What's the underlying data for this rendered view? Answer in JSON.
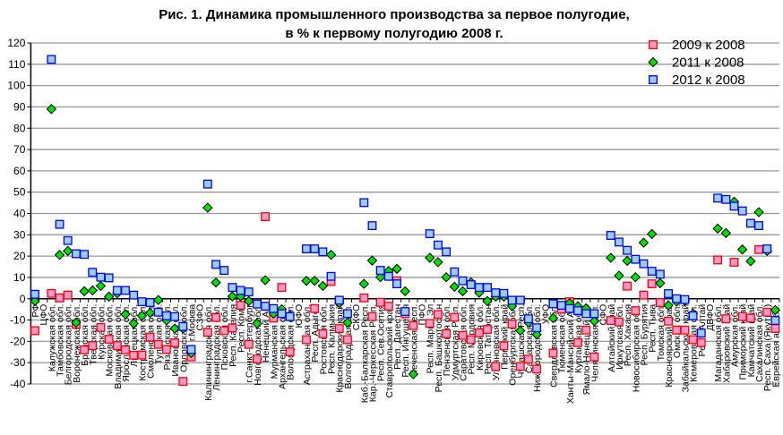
{
  "chart_data": {
    "type": "scatter",
    "title": [
      "Рис. 1. Динамика промышленного производства за первое полугодие,",
      "в % к первому полугодию 2008 г."
    ],
    "xlabel": "",
    "ylabel": "",
    "ylim": [
      -40,
      120
    ],
    "yticks": [
      -40,
      -30,
      -20,
      -10,
      0,
      10,
      20,
      30,
      40,
      50,
      60,
      70,
      80,
      90,
      100,
      110,
      120
    ],
    "grid": true,
    "legend_position": "top-right",
    "categories": [
      "РФ",
      "ЦФО",
      "Калужская обл.",
      "Тамбовская обл.",
      "Белгородская обл.",
      "Воронежская обл.",
      "Брянская обл.",
      "Тверская обл.",
      "Курская обл.",
      "Московская обл.",
      "Владимирская обл.",
      "Ярославская обл.",
      "Липецкая обл.",
      "Костромская обл.",
      "Смоленская обл.",
      "Тульская обл.",
      "Рязанская обл.",
      "Ивановская обл.",
      "Орловская обл.",
      "г.Москва",
      "СЗФО",
      "Калининградская обл.",
      "Ленинградская обл.",
      "Псковская обл.",
      "Респ. Карелия",
      "Респ. Коми",
      "г.Санкт-Петербург",
      "Новгородская обл.",
      "Ненецкий АО",
      "Мурманская обл.",
      "Архангельская обл.",
      "Вологодская обл.",
      "ЮФО",
      "Астраханская обл.",
      "Респ. Адыгея",
      "Ростовская обл.",
      "Респ. Калмыкия",
      "Краснодарский край",
      "Волгоградская обл.",
      "СКФО",
      "Каб.-Балкарская Респ.",
      "Кар.-Черкесская Респ.",
      "Респ. Сев.Осетия",
      "Ставропольский край",
      "Респ. Дагестан",
      "Респ. Ингушетия",
      "Чеченская Респ.",
      "ПФО",
      "Респ. Марий Эл",
      "Респ. Башкортостан",
      "Пензенская обл.",
      "Удмуртская Респ.",
      "Саратовская обл.",
      "Респ. Мордовия",
      "Кировская обл.",
      "Респ. Татарстан",
      "Ульяновская обл.",
      "Пермский край",
      "Оренбургская обл.",
      "Чувашская Респ.",
      "Самарская обл.",
      "Нижегородская обл.",
      "УФО",
      "Свердловская обл.",
      "Тюменская обл.",
      "Ханты-Мансийский АО",
      "Курганская обл.",
      "Ямало-Ненецкий АО",
      "Челябинская обл.",
      "СФО",
      "Алтайский край",
      "Иркутская обл.",
      "Респ. Хакасия",
      "Новосибирская обл.",
      "Респ. Бурятия",
      "Респ. Тыва",
      "Томская обл.",
      "Красноярский край",
      "Омская обл.",
      "Забайкальский край",
      "Кемеровская обл.",
      "Респ. Алтай",
      "ДВФО",
      "Магаданская обл.",
      "Хабаровский край",
      "Амурская обл.",
      "Приморский край",
      "Камчатский край",
      "Сахалинская обл.",
      "Респ. Саха (Якутия)",
      "Еврейская авт.обл."
    ],
    "series": [
      {
        "name": "2009 к 2008",
        "marker": "square",
        "fill": "#ff99cc",
        "stroke": "#ff0000",
        "values": [
          -15,
          null,
          2.5,
          0.4,
          1.7,
          -12,
          -24,
          -22,
          -13.5,
          -19,
          -22,
          -24,
          -26.5,
          -26.4,
          -18,
          -21.4,
          -23.8,
          -20.7,
          -38.8,
          -27.3,
          null,
          -15.8,
          -8.8,
          -15,
          -13.7,
          -3.1,
          -21.4,
          -28.3,
          38.5,
          -9.1,
          5.3,
          -24.9,
          null,
          -19.2,
          -4.6,
          -16.4,
          8.1,
          -14,
          -19.2,
          null,
          0.4,
          -8.4,
          -1.7,
          -3.5,
          8.4,
          -7,
          -12.6,
          null,
          -11.6,
          -7.4,
          -16.4,
          -8.7,
          -17.2,
          -19.2,
          -16,
          -14.4,
          -31.8,
          -22.1,
          -11.9,
          -31.8,
          -28.4,
          -33,
          null,
          -25.5,
          -4.9,
          -1.4,
          -20.6,
          -14.7,
          -27.3,
          null,
          -10.2,
          -10.9,
          5.9,
          -5.6,
          1.7,
          7,
          -1.8,
          -10.5,
          -14.7,
          -14.7,
          -19.2,
          -20.6,
          null,
          18.2,
          -9.4,
          17.1,
          -8.4,
          -9.1,
          23.1,
          -6.3,
          -14
        ]
      },
      {
        "name": "2011 к 2008",
        "marker": "diamond",
        "fill": "#00e000",
        "stroke": "#000000",
        "values": [
          -1.1,
          null,
          89,
          20.6,
          22.4,
          -11.2,
          3.5,
          3.9,
          6,
          1,
          2.5,
          -7.3,
          -11.6,
          -8,
          -6.6,
          -0.6,
          -10.2,
          -14,
          -14,
          -25.5,
          null,
          42.7,
          7.6,
          null,
          1.1,
          1.1,
          -1.1,
          -11.6,
          8.7,
          -7,
          -4.9,
          -7.7,
          null,
          8.4,
          8.4,
          6,
          20.6,
          -2,
          -11.2,
          null,
          7,
          17.9,
          10.1,
          13,
          14,
          3.5,
          -35.4,
          null,
          19.2,
          17.2,
          10.1,
          5.6,
          3.5,
          7.7,
          2.8,
          -1.1,
          1,
          1,
          -3.5,
          -15,
          -11.2,
          -16.8,
          null,
          -9.1,
          null,
          -2.1,
          -3.5,
          -4.5,
          -10.5,
          null,
          19.2,
          10.8,
          17.8,
          10.1,
          26.3,
          30.4,
          7.3,
          -3.1,
          -1.4,
          -1,
          -7,
          null,
          null,
          32.9,
          30.8,
          45.5,
          23.1,
          17.6,
          40.6,
          22.4,
          -5.3
        ]
      },
      {
        "name": "2012 к 2008",
        "marker": "square",
        "fill": "#99ccff",
        "stroke": "#0000ff",
        "values": [
          2.1,
          null,
          112.3,
          34.9,
          27.3,
          21.1,
          20.8,
          12.4,
          10.1,
          9.8,
          3.9,
          3.9,
          1.7,
          -1.4,
          -1.8,
          -6.3,
          -8,
          -8.4,
          -13,
          -23.8,
          null,
          53.8,
          16.1,
          13.3,
          5.3,
          3.9,
          3.2,
          -2.5,
          -3.5,
          -4.6,
          -7,
          -8.4,
          null,
          23.4,
          23.4,
          22,
          10.5,
          -0.7,
          -7,
          null,
          45.1,
          34.3,
          13.3,
          10.5,
          7,
          -6,
          null,
          null,
          30.5,
          25.2,
          22,
          12.6,
          8.4,
          6.6,
          5.3,
          5.3,
          2.8,
          2.5,
          -0.7,
          -0.7,
          -9.4,
          -13.6,
          null,
          -2.4,
          -3.1,
          -4.6,
          -5.6,
          -7,
          -7,
          null,
          29.7,
          26.6,
          22.7,
          18.5,
          16.4,
          12.9,
          11.5,
          2.4,
          0,
          -0.4,
          -8,
          -16.1,
          null,
          47.2,
          46.6,
          43.4,
          41.2,
          35.4,
          34.3,
          23.4,
          -10.2
        ]
      }
    ]
  }
}
